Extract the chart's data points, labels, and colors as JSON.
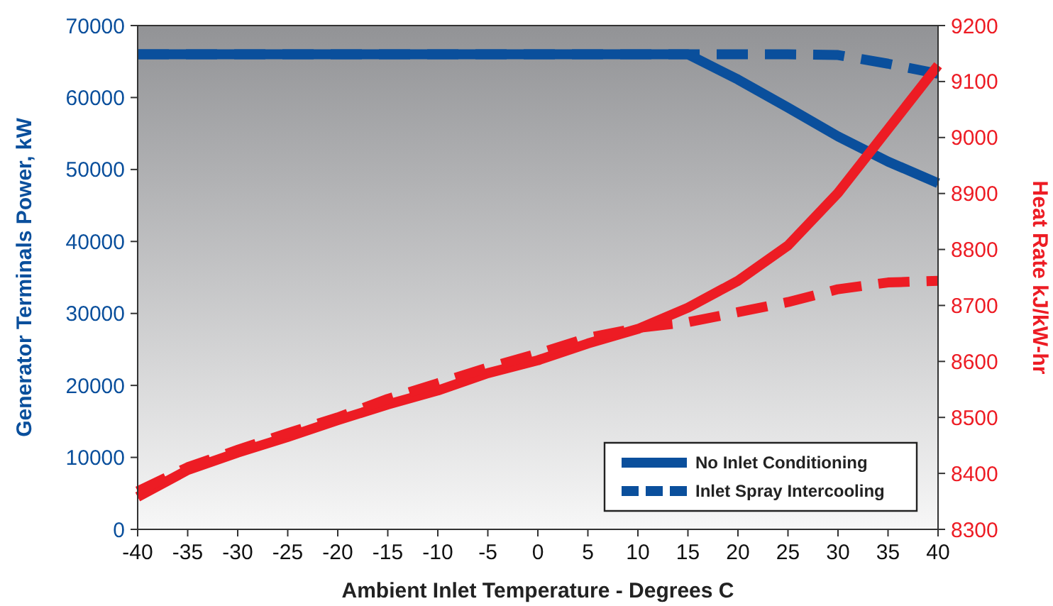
{
  "chart_data": {
    "type": "line",
    "xlabel": "Ambient Inlet Temperature - Degrees C",
    "ylabel": "Generator Terminals Power, kW",
    "y2label": "Heat Rate kJ/kW-hr",
    "x": [
      -40,
      -35,
      -30,
      -25,
      -20,
      -15,
      -10,
      -5,
      0,
      5,
      10,
      15,
      20,
      25,
      30,
      35,
      40
    ],
    "xlim": [
      -40,
      40
    ],
    "xticks": [
      -40,
      -35,
      -30,
      -25,
      -20,
      -15,
      -10,
      -5,
      0,
      5,
      10,
      15,
      20,
      25,
      30,
      35,
      40
    ],
    "ylim": [
      0,
      70000
    ],
    "yticks": [
      0,
      10000,
      20000,
      30000,
      40000,
      50000,
      60000,
      70000
    ],
    "y2lim": [
      8300,
      9200
    ],
    "y2ticks": [
      8300,
      8400,
      8500,
      8600,
      8700,
      8800,
      8900,
      9000,
      9100,
      9200
    ],
    "grid": false,
    "legend": "bottom right",
    "marker": "none",
    "series": [
      {
        "name": "No Inlet Conditioning",
        "color": "#0a4f9c",
        "line_style": "solid",
        "values": [
          66000,
          66000,
          66000,
          66000,
          66000,
          66000,
          66000,
          66000,
          66000,
          66000,
          66000,
          66000,
          62500,
          58600,
          54600,
          51100,
          48100
        ]
      },
      {
        "name": "Inlet Spray Intercooling",
        "color": "#0a4f9c",
        "line_style": "dashed",
        "values": [
          66000,
          66000,
          66000,
          66000,
          66000,
          66000,
          66000,
          66000,
          66000,
          66000,
          66000,
          66000,
          66000,
          66000,
          65900,
          64700,
          63300
        ]
      },
      {
        "color": "#ed1c24",
        "axis": "y2",
        "line_style": "solid",
        "values": [
          8358,
          8406,
          8437,
          8465,
          8495,
          8523,
          8548,
          8579,
          8602,
          8632,
          8658,
          8696,
          8744,
          8807,
          8901,
          9015,
          9129
        ]
      },
      {
        "color": "#ed1c24",
        "axis": "y2",
        "line_style": "dashed",
        "values": [
          8368,
          8411,
          8442,
          8472,
          8500,
          8533,
          8561,
          8589,
          8614,
          8642,
          8660,
          8670,
          8688,
          8706,
          8729,
          8741,
          8744
        ]
      }
    ]
  }
}
